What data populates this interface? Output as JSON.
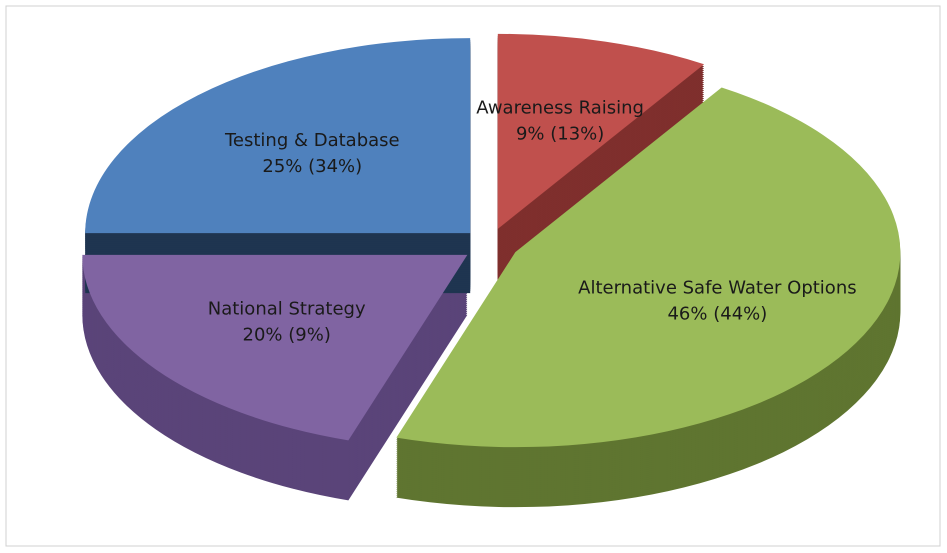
{
  "chart_data": {
    "type": "pie",
    "categories": [
      "Awareness Raising",
      "Alternative Safe Water Options",
      "National Strategy",
      "Testing & Database"
    ],
    "values": [
      9,
      46,
      20,
      25
    ],
    "value_labels": [
      "9% (13%)",
      "46% (44%)",
      "20% (9%)",
      "25%  (34%)"
    ],
    "colors": [
      "#c0504d",
      "#9bbb59",
      "#8064a2",
      "#4f81bd"
    ],
    "side_colors": [
      "#7f2f2d",
      "#5f7530",
      "#5a4479",
      "#1f3550"
    ],
    "exploded": true
  }
}
